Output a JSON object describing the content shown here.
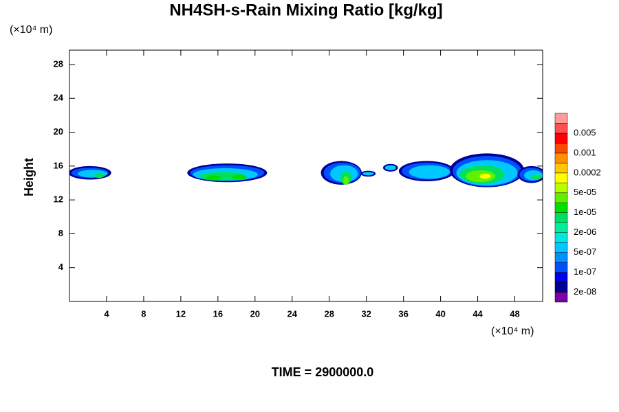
{
  "chart_data": {
    "type": "contour",
    "title": "NH4SH-s-Rain Mixing Ratio [kg/kg]",
    "y_unit_label": "(×10⁴ m)",
    "x_unit_label": "(×10⁴ m)",
    "ylabel": "Height",
    "time_label": "TIME = 2900000.0",
    "xlim": [
      0,
      51
    ],
    "ylim": [
      0,
      29.7
    ],
    "xticks": [
      4,
      8,
      12,
      16,
      20,
      24,
      28,
      32,
      36,
      40,
      44,
      48
    ],
    "yticks": [
      4,
      8,
      12,
      16,
      20,
      24,
      28
    ],
    "colorbar": {
      "colors": [
        "#7a00a8",
        "#000096",
        "#0000f0",
        "#0050ff",
        "#0090ff",
        "#00c8ff",
        "#00e8e0",
        "#00f0a0",
        "#00e060",
        "#00e000",
        "#60f000",
        "#b8ff00",
        "#ffff00",
        "#ffc800",
        "#ff9000",
        "#ff4800",
        "#ff0000",
        "#ff5050",
        "#ff9a9a"
      ],
      "ticks": [
        {
          "value": 2e-08,
          "label": "2e-08"
        },
        {
          "value": 1e-07,
          "label": "1e-07"
        },
        {
          "value": 5e-07,
          "label": "5e-07"
        },
        {
          "value": 2e-06,
          "label": "2e-06"
        },
        {
          "value": 1e-05,
          "label": "1e-05"
        },
        {
          "value": 5e-05,
          "label": "5e-05"
        },
        0.0002,
        0.001,
        0.005
      ]
    },
    "patches": [
      {
        "x": 2.2,
        "y": 15.2,
        "rx": 2.3,
        "ry": 0.8,
        "value": 2e-08
      },
      {
        "x": 2.2,
        "y": 15.2,
        "rx": 2.0,
        "ry": 0.6,
        "value": 1e-07
      },
      {
        "x": 2.5,
        "y": 15.1,
        "rx": 1.6,
        "ry": 0.45,
        "value": 5e-07
      },
      {
        "x": 3.2,
        "y": 14.9,
        "rx": 0.6,
        "ry": 0.3,
        "value": 5e-06
      },
      {
        "x": 17,
        "y": 15.2,
        "rx": 4.3,
        "ry": 1.1,
        "value": 2e-08
      },
      {
        "x": 17,
        "y": 15.2,
        "rx": 4.0,
        "ry": 0.9,
        "value": 1e-07
      },
      {
        "x": 16.8,
        "y": 15,
        "rx": 3.5,
        "ry": 0.75,
        "value": 5e-07
      },
      {
        "x": 16.5,
        "y": 14.8,
        "rx": 2.5,
        "ry": 0.5,
        "value": 5e-06
      },
      {
        "x": 15.5,
        "y": 14.6,
        "rx": 0.8,
        "ry": 0.3,
        "value": 2e-05
      },
      {
        "x": 18.3,
        "y": 14.7,
        "rx": 0.8,
        "ry": 0.3,
        "value": 2e-05
      },
      {
        "x": 29.3,
        "y": 15.2,
        "rx": 2.2,
        "ry": 1.4,
        "value": 2e-08
      },
      {
        "x": 29.4,
        "y": 15.2,
        "rx": 2.0,
        "ry": 1.2,
        "value": 1e-07
      },
      {
        "x": 29.6,
        "y": 15.1,
        "rx": 1.5,
        "ry": 1.0,
        "value": 5e-07
      },
      {
        "x": 29.8,
        "y": 14.6,
        "rx": 0.6,
        "ry": 0.8,
        "value": 5e-06
      },
      {
        "x": 29.8,
        "y": 14.3,
        "rx": 0.3,
        "ry": 0.5,
        "value": 3e-05
      },
      {
        "x": 32.2,
        "y": 15.1,
        "rx": 0.8,
        "ry": 0.35,
        "value": 2e-08
      },
      {
        "x": 32.2,
        "y": 15.1,
        "rx": 0.6,
        "ry": 0.2,
        "value": 5e-07
      },
      {
        "x": 34.6,
        "y": 15.8,
        "rx": 0.8,
        "ry": 0.45,
        "value": 2e-08
      },
      {
        "x": 34.6,
        "y": 15.8,
        "rx": 0.6,
        "ry": 0.3,
        "value": 5e-07
      },
      {
        "x": 38.5,
        "y": 15.4,
        "rx": 3.0,
        "ry": 1.2,
        "value": 2e-08
      },
      {
        "x": 38.5,
        "y": 15.4,
        "rx": 2.7,
        "ry": 1.0,
        "value": 1e-07
      },
      {
        "x": 38.8,
        "y": 15.3,
        "rx": 2.2,
        "ry": 0.8,
        "value": 5e-07
      },
      {
        "x": 45,
        "y": 15.5,
        "rx": 4.0,
        "ry": 2.0,
        "value": 2e-08
      },
      {
        "x": 45,
        "y": 15.4,
        "rx": 3.7,
        "ry": 1.8,
        "value": 1e-07
      },
      {
        "x": 45,
        "y": 15.2,
        "rx": 3.3,
        "ry": 1.5,
        "value": 5e-07
      },
      {
        "x": 44.5,
        "y": 15,
        "rx": 2.4,
        "ry": 1.1,
        "value": 5e-06
      },
      {
        "x": 44.3,
        "y": 14.8,
        "rx": 1.6,
        "ry": 0.7,
        "value": 3e-05
      },
      {
        "x": 44.8,
        "y": 14.8,
        "rx": 0.6,
        "ry": 0.3,
        "value": 0.0001
      },
      {
        "x": 49.8,
        "y": 15,
        "rx": 1.5,
        "ry": 1.0,
        "value": 2e-08
      },
      {
        "x": 49.8,
        "y": 15,
        "rx": 1.3,
        "ry": 0.8,
        "value": 1e-07
      },
      {
        "x": 50,
        "y": 14.9,
        "rx": 1.0,
        "ry": 0.6,
        "value": 5e-07
      },
      {
        "x": 50.3,
        "y": 14.7,
        "rx": 0.6,
        "ry": 0.3,
        "value": 5e-06
      }
    ]
  }
}
